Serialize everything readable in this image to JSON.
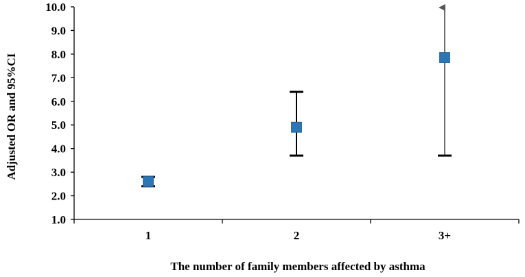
{
  "chart_data": {
    "type": "scatter",
    "title": "",
    "xlabel": "The number of family members affected by asthma",
    "ylabel": "Adjusted OR and 95%CI",
    "ylim": [
      1.0,
      10.0
    ],
    "yticks": [
      "1.0",
      "2.0",
      "3.0",
      "4.0",
      "5.0",
      "6.0",
      "7.0",
      "8.0",
      "9.0",
      "10.0"
    ],
    "categories": [
      "1",
      "2",
      "3+"
    ],
    "points": [
      {
        "category": "1",
        "or": 2.6,
        "ci_low": 2.4,
        "ci_high": 2.8,
        "upper_arrow": false
      },
      {
        "category": "2",
        "or": 4.9,
        "ci_low": 3.7,
        "ci_high": 6.4,
        "upper_arrow": false
      },
      {
        "category": "3+",
        "or": 7.85,
        "ci_low": 3.7,
        "ci_high": 10.0,
        "upper_arrow": true
      }
    ],
    "marker_color": "#2e75b6",
    "grid": false,
    "legend": "none"
  }
}
